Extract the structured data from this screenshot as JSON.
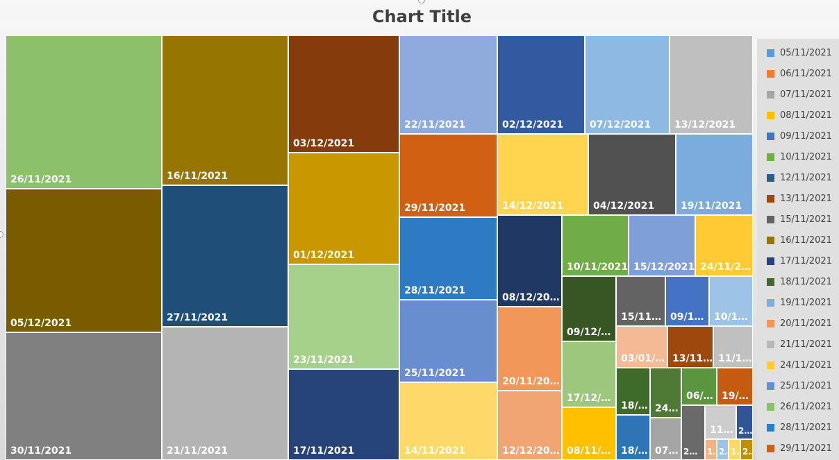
{
  "chart_data": {
    "type": "treemap",
    "title": "Chart Title",
    "items": [
      {
        "label": "26/11/2021",
        "color": "#8dc06b"
      },
      {
        "label": "05/12/2021",
        "color": "#7a5c00"
      },
      {
        "label": "30/11/2021",
        "color": "#808080"
      },
      {
        "label": "16/11/2021",
        "color": "#977600"
      },
      {
        "label": "27/11/2021",
        "color": "#1f4e79"
      },
      {
        "label": "21/11/2021",
        "color": "#b4b4b4"
      },
      {
        "label": "03/12/2021",
        "color": "#843c0c"
      },
      {
        "label": "01/12/2021",
        "color": "#c99800"
      },
      {
        "label": "23/11/2021",
        "color": "#a6d18a"
      },
      {
        "label": "17/11/2021",
        "color": "#264478"
      },
      {
        "label": "22/11/2021",
        "color": "#8faadc"
      },
      {
        "label": "29/11/2021",
        "color": "#d26012"
      },
      {
        "label": "28/11/2021",
        "color": "#2e7bc4"
      },
      {
        "label": "25/11/2021",
        "color": "#698ed0"
      },
      {
        "label": "14/11/2021",
        "color": "#fed96a"
      },
      {
        "label": "02/12/2021",
        "color": "#335aa1"
      },
      {
        "label": "07/12/2021",
        "color": "#8db9e2"
      },
      {
        "label": "13/12/2021",
        "color": "#bfbfbf"
      },
      {
        "label": "14/12/2021",
        "color": "#ffd54f"
      },
      {
        "label": "04/12/2021",
        "color": "#515151"
      },
      {
        "label": "19/11/2021",
        "color": "#7cacde"
      },
      {
        "label": "08/12/20…",
        "color": "#203864"
      },
      {
        "label": "20/11/20…",
        "color": "#f19759"
      },
      {
        "label": "12/12/20…",
        "color": "#f0a572"
      },
      {
        "label": "10/11/2021",
        "color": "#70ad47"
      },
      {
        "label": "15/12/2021",
        "color": "#7f9fd8"
      },
      {
        "label": "24/11/2…",
        "color": "#ffca33"
      },
      {
        "label": "09/12/…",
        "color": "#375623"
      },
      {
        "label": "17/12/…",
        "color": "#9dc77c"
      },
      {
        "label": "08/11/…",
        "color": "#ffc000"
      },
      {
        "label": "15/11…",
        "color": "#636363"
      },
      {
        "label": "09/1…",
        "color": "#4472c4"
      },
      {
        "label": "10/1…",
        "color": "#9dc3e6"
      },
      {
        "label": "03/01/…",
        "color": "#f4b995"
      },
      {
        "label": "13/11…",
        "color": "#9e480e"
      },
      {
        "label": "11/1…",
        "color": "#c0c0c0"
      },
      {
        "label": "18/…",
        "color": "#3e6b2a"
      },
      {
        "label": "24…",
        "color": "#4f7a35"
      },
      {
        "label": "06/…",
        "color": "#5a9640"
      },
      {
        "label": "19/…",
        "color": "#c55a11"
      },
      {
        "label": "18/…",
        "color": "#2e75b6"
      },
      {
        "label": "07…",
        "color": "#a5a5a5"
      },
      {
        "label": "2…",
        "color": "#6a6a6a"
      },
      {
        "label": "11…",
        "color": "#cdcdcd"
      },
      {
        "label": "2…",
        "color": "#2f5597"
      },
      {
        "label": "1…",
        "color": "#f4b183"
      },
      {
        "label": "2…",
        "color": "#9dc3e6"
      },
      {
        "label": "1…",
        "color": "#ffd966"
      },
      {
        "label": "2…",
        "color": "#bf9000"
      }
    ],
    "legend": {
      "placement": "right",
      "entries": [
        {
          "label": "05/11/2021",
          "color": "#5b9bd5"
        },
        {
          "label": "06/11/2021",
          "color": "#ed7d31"
        },
        {
          "label": "07/11/2021",
          "color": "#a5a5a5"
        },
        {
          "label": "08/11/2021",
          "color": "#ffc000"
        },
        {
          "label": "09/11/2021",
          "color": "#4472c4"
        },
        {
          "label": "10/11/2021",
          "color": "#70ad47"
        },
        {
          "label": "12/11/2021",
          "color": "#255e91"
        },
        {
          "label": "13/11/2021",
          "color": "#9e480e"
        },
        {
          "label": "15/11/2021",
          "color": "#636363"
        },
        {
          "label": "16/11/2021",
          "color": "#997300"
        },
        {
          "label": "17/11/2021",
          "color": "#264478"
        },
        {
          "label": "18/11/2021",
          "color": "#43682b"
        },
        {
          "label": "19/11/2021",
          "color": "#7cafdd"
        },
        {
          "label": "20/11/2021",
          "color": "#f1975a"
        },
        {
          "label": "21/11/2021",
          "color": "#b7b7b7"
        },
        {
          "label": "24/11/2021",
          "color": "#ffcd33"
        },
        {
          "label": "25/11/2021",
          "color": "#698ed0"
        },
        {
          "label": "26/11/2021",
          "color": "#8cc168"
        },
        {
          "label": "28/11/2021",
          "color": "#327dc2"
        },
        {
          "label": "29/11/2021",
          "color": "#d26012"
        }
      ]
    }
  }
}
